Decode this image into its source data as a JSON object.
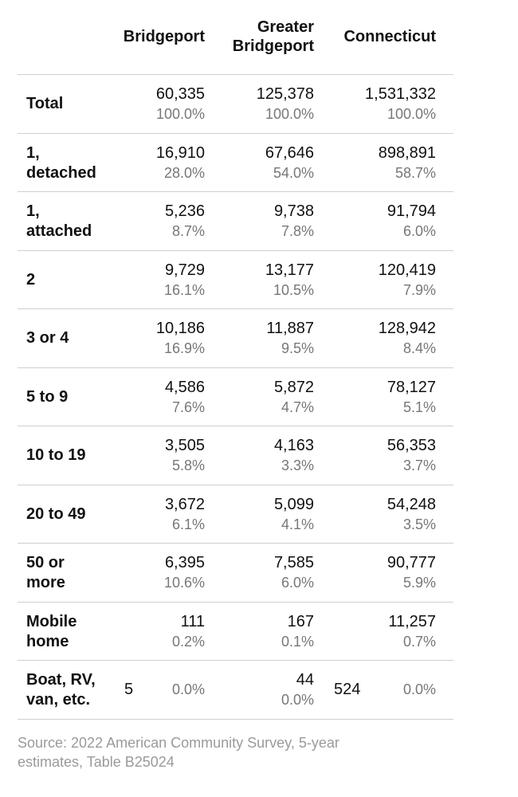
{
  "headers": {
    "col1": "Bridgeport",
    "col2_line1": "Greater",
    "col2_line2": "Bridgeport",
    "col3": "Connecticut"
  },
  "rows": [
    {
      "label": [
        "Total"
      ],
      "bridgeport": {
        "count": "60,335",
        "pct": "100.0%"
      },
      "greater_bridgeport": {
        "count": "125,378",
        "pct": "100.0%"
      },
      "connecticut": {
        "count": "1,531,332",
        "pct": "100.0%"
      }
    },
    {
      "label": [
        "1,",
        "detached"
      ],
      "bridgeport": {
        "count": "16,910",
        "pct": "28.0%"
      },
      "greater_bridgeport": {
        "count": "67,646",
        "pct": "54.0%"
      },
      "connecticut": {
        "count": "898,891",
        "pct": "58.7%"
      }
    },
    {
      "label": [
        "1,",
        "attached"
      ],
      "bridgeport": {
        "count": "5,236",
        "pct": "8.7%"
      },
      "greater_bridgeport": {
        "count": "9,738",
        "pct": "7.8%"
      },
      "connecticut": {
        "count": "91,794",
        "pct": "6.0%"
      }
    },
    {
      "label": [
        "2"
      ],
      "bridgeport": {
        "count": "9,729",
        "pct": "16.1%"
      },
      "greater_bridgeport": {
        "count": "13,177",
        "pct": "10.5%"
      },
      "connecticut": {
        "count": "120,419",
        "pct": "7.9%"
      }
    },
    {
      "label": [
        "3 or 4"
      ],
      "bridgeport": {
        "count": "10,186",
        "pct": "16.9%"
      },
      "greater_bridgeport": {
        "count": "11,887",
        "pct": "9.5%"
      },
      "connecticut": {
        "count": "128,942",
        "pct": "8.4%"
      }
    },
    {
      "label": [
        "5 to 9"
      ],
      "bridgeport": {
        "count": "4,586",
        "pct": "7.6%"
      },
      "greater_bridgeport": {
        "count": "5,872",
        "pct": "4.7%"
      },
      "connecticut": {
        "count": "78,127",
        "pct": "5.1%"
      }
    },
    {
      "label": [
        "10 to 19"
      ],
      "bridgeport": {
        "count": "3,505",
        "pct": "5.8%"
      },
      "greater_bridgeport": {
        "count": "4,163",
        "pct": "3.3%"
      },
      "connecticut": {
        "count": "56,353",
        "pct": "3.7%"
      }
    },
    {
      "label": [
        "20 to 49"
      ],
      "bridgeport": {
        "count": "3,672",
        "pct": "6.1%"
      },
      "greater_bridgeport": {
        "count": "5,099",
        "pct": "4.1%"
      },
      "connecticut": {
        "count": "54,248",
        "pct": "3.5%"
      }
    },
    {
      "label": [
        "50 or",
        "more"
      ],
      "bridgeport": {
        "count": "6,395",
        "pct": "10.6%"
      },
      "greater_bridgeport": {
        "count": "7,585",
        "pct": "6.0%"
      },
      "connecticut": {
        "count": "90,777",
        "pct": "5.9%"
      }
    },
    {
      "label": [
        "Mobile",
        "home"
      ],
      "bridgeport": {
        "count": "111",
        "pct": "0.2%"
      },
      "greater_bridgeport": {
        "count": "167",
        "pct": "0.1%"
      },
      "connecticut": {
        "count": "11,257",
        "pct": "0.7%"
      }
    },
    {
      "label": [
        "Boat, RV,",
        "van, etc."
      ],
      "bridgeport": {
        "count": "5",
        "pct": "0.0%"
      },
      "greater_bridgeport": {
        "count": "44",
        "pct": "0.0%"
      },
      "connecticut": {
        "count": "524",
        "pct": "0.0%"
      }
    }
  ],
  "source": "Source: 2022 American Community Survey, 5-year estimates, Table B25024"
}
